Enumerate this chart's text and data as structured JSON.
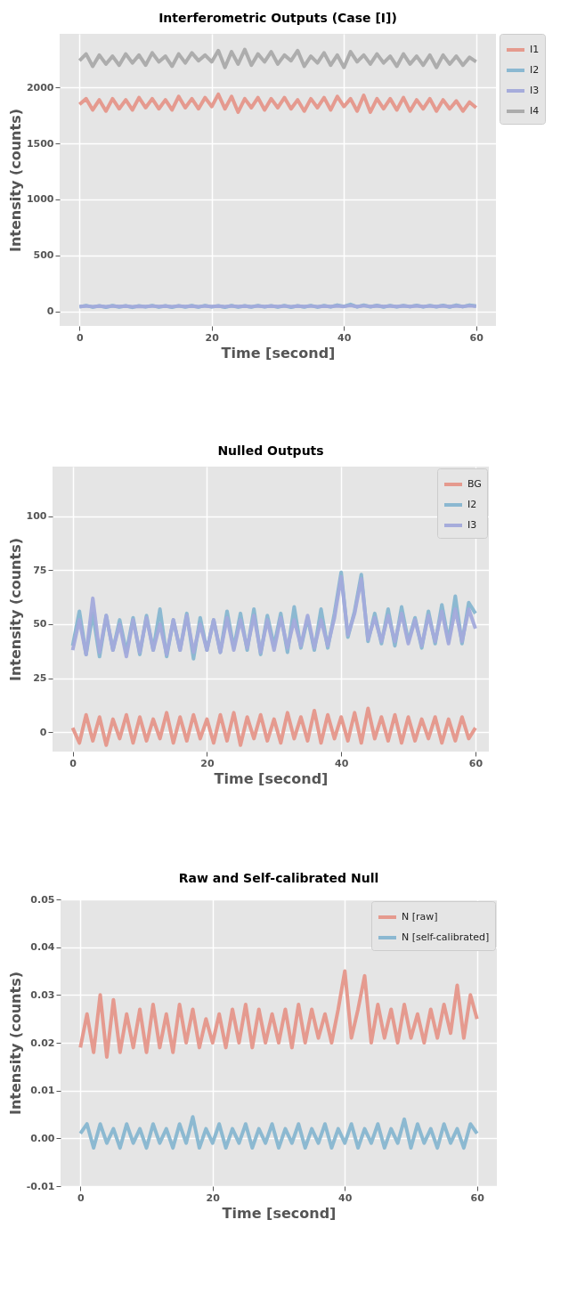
{
  "chart_data": [
    {
      "type": "line",
      "title": "Interferometric Outputs (Case [I])",
      "xlabel": "Time [second]",
      "ylabel": "Intensity (counts)",
      "xlim": [
        -3,
        63
      ],
      "ylim": [
        -130,
        2480
      ],
      "xticks": [
        0,
        20,
        40,
        60
      ],
      "yticks": [
        0,
        500,
        1000,
        1500,
        2000
      ],
      "grid": true,
      "legend": "top right",
      "line_style": "solid",
      "x": [
        0,
        1,
        2,
        3,
        4,
        5,
        6,
        7,
        8,
        9,
        10,
        11,
        12,
        13,
        14,
        15,
        16,
        17,
        18,
        19,
        20,
        21,
        22,
        23,
        24,
        25,
        26,
        27,
        28,
        29,
        30,
        31,
        32,
        33,
        34,
        35,
        36,
        37,
        38,
        39,
        40,
        41,
        42,
        43,
        44,
        45,
        46,
        47,
        48,
        49,
        50,
        51,
        52,
        53,
        54,
        55,
        56,
        57,
        58,
        59,
        60
      ],
      "series": [
        {
          "name": "I1",
          "color": "#e5968a",
          "values": [
            1850,
            1900,
            1800,
            1890,
            1790,
            1900,
            1810,
            1890,
            1800,
            1910,
            1820,
            1900,
            1810,
            1890,
            1800,
            1920,
            1820,
            1900,
            1810,
            1910,
            1830,
            1940,
            1810,
            1920,
            1780,
            1900,
            1820,
            1910,
            1800,
            1900,
            1820,
            1910,
            1810,
            1890,
            1790,
            1900,
            1820,
            1910,
            1800,
            1920,
            1830,
            1900,
            1790,
            1930,
            1780,
            1900,
            1810,
            1900,
            1800,
            1910,
            1790,
            1890,
            1810,
            1900,
            1790,
            1890,
            1810,
            1880,
            1790,
            1870,
            1820
          ]
        },
        {
          "name": "I2",
          "color": "#87b6d0",
          "values": [
            40,
            52,
            38,
            50,
            37,
            51,
            39,
            49,
            36,
            50,
            40,
            52,
            38,
            49,
            37,
            50,
            39,
            51,
            38,
            52,
            40,
            50,
            37,
            51,
            38,
            49,
            39,
            52,
            40,
            50,
            38,
            51,
            37,
            50,
            39,
            52,
            38,
            51,
            40,
            56,
            44,
            62,
            40,
            55,
            41,
            53,
            39,
            52,
            40,
            51,
            42,
            54,
            40,
            52,
            41,
            53,
            39,
            55,
            42,
            56,
            48
          ]
        },
        {
          "name": "I3",
          "color": "#a3aadb",
          "values": [
            44,
            48,
            42,
            47,
            41,
            48,
            43,
            47,
            42,
            46,
            44,
            48,
            43,
            47,
            42,
            48,
            43,
            47,
            42,
            48,
            44,
            47,
            42,
            48,
            43,
            47,
            42,
            48,
            44,
            47,
            43,
            48,
            42,
            47,
            43,
            48,
            42,
            47,
            43,
            49,
            44,
            52,
            43,
            50,
            44,
            49,
            43,
            48,
            44,
            49,
            44,
            49,
            43,
            48,
            44,
            49,
            43,
            49,
            44,
            50,
            46
          ]
        },
        {
          "name": "I4",
          "color": "#aaaaaa",
          "values": [
            2240,
            2300,
            2190,
            2290,
            2210,
            2280,
            2200,
            2300,
            2220,
            2290,
            2200,
            2310,
            2230,
            2280,
            2190,
            2300,
            2220,
            2310,
            2240,
            2290,
            2230,
            2330,
            2180,
            2320,
            2210,
            2340,
            2200,
            2300,
            2230,
            2320,
            2210,
            2290,
            2240,
            2330,
            2190,
            2280,
            2220,
            2310,
            2200,
            2290,
            2180,
            2320,
            2230,
            2290,
            2210,
            2300,
            2220,
            2280,
            2190,
            2300,
            2210,
            2280,
            2200,
            2290,
            2180,
            2290,
            2210,
            2280,
            2200,
            2270,
            2230
          ]
        }
      ]
    },
    {
      "type": "line",
      "title": "Nulled Outputs",
      "xlabel": "Time [second]",
      "ylabel": "Intensity (counts)",
      "xlim": [
        -3,
        62
      ],
      "ylim": [
        -9,
        123
      ],
      "xticks": [
        0,
        20,
        40,
        60
      ],
      "yticks": [
        0,
        25,
        50,
        75,
        100
      ],
      "grid": true,
      "legend": "top right",
      "line_style": "solid",
      "x": [
        0,
        1,
        2,
        3,
        4,
        5,
        6,
        7,
        8,
        9,
        10,
        11,
        12,
        13,
        14,
        15,
        16,
        17,
        18,
        19,
        20,
        21,
        22,
        23,
        24,
        25,
        26,
        27,
        28,
        29,
        30,
        31,
        32,
        33,
        34,
        35,
        36,
        37,
        38,
        39,
        40,
        41,
        42,
        43,
        44,
        45,
        46,
        47,
        48,
        49,
        50,
        51,
        52,
        53,
        54,
        55,
        56,
        57,
        58,
        59,
        60
      ],
      "series": [
        {
          "name": "BG",
          "color": "#e5968a",
          "values": [
            2,
            -5,
            8,
            -4,
            7,
            -6,
            6,
            -3,
            8,
            -5,
            7,
            -4,
            6,
            -3,
            9,
            -5,
            7,
            -4,
            8,
            -3,
            6,
            -5,
            8,
            -4,
            9,
            -6,
            7,
            -3,
            8,
            -4,
            6,
            -5,
            9,
            -3,
            7,
            -4,
            10,
            -5,
            8,
            -3,
            7,
            -4,
            9,
            -5,
            11,
            -3,
            7,
            -4,
            8,
            -5,
            7,
            -4,
            6,
            -3,
            7,
            -5,
            6,
            -4,
            7,
            -3,
            2
          ]
        },
        {
          "name": "I2",
          "color": "#87b6d0",
          "values": [
            40,
            56,
            36,
            55,
            35,
            54,
            38,
            52,
            37,
            53,
            36,
            54,
            38,
            57,
            35,
            52,
            38,
            55,
            34,
            53,
            38,
            52,
            37,
            56,
            39,
            55,
            38,
            57,
            36,
            54,
            40,
            55,
            37,
            58,
            39,
            53,
            38,
            57,
            39,
            55,
            74,
            44,
            56,
            73,
            42,
            55,
            41,
            57,
            40,
            58,
            42,
            53,
            39,
            56,
            41,
            59,
            42,
            63,
            41,
            60,
            55
          ]
        },
        {
          "name": "I3",
          "color": "#a3aadb",
          "values": [
            38,
            52,
            36,
            62,
            37,
            54,
            38,
            50,
            35,
            52,
            37,
            53,
            38,
            50,
            36,
            52,
            38,
            54,
            37,
            50,
            38,
            52,
            37,
            53,
            38,
            52,
            39,
            54,
            37,
            52,
            38,
            53,
            39,
            52,
            40,
            54,
            39,
            52,
            40,
            53,
            72,
            45,
            55,
            71,
            43,
            53,
            42,
            54,
            42,
            55,
            41,
            52,
            40,
            54,
            42,
            56,
            41,
            57,
            42,
            57,
            48
          ]
        }
      ]
    },
    {
      "type": "line",
      "title": "Raw and Self-calibrated Null",
      "xlabel": "Time [second]",
      "ylabel": "Intensity (counts)",
      "xlim": [
        -3,
        63
      ],
      "ylim": [
        -0.01,
        0.05
      ],
      "xticks": [
        0,
        20,
        40,
        60
      ],
      "yticks": [
        -0.01,
        {
          "value": 0,
          "label": "0.00"
        },
        0.01,
        0.02,
        0.03,
        0.04,
        0.05
      ],
      "grid": true,
      "legend": "top right",
      "line_style": "solid",
      "x": [
        0,
        1,
        2,
        3,
        4,
        5,
        6,
        7,
        8,
        9,
        10,
        11,
        12,
        13,
        14,
        15,
        16,
        17,
        18,
        19,
        20,
        21,
        22,
        23,
        24,
        25,
        26,
        27,
        28,
        29,
        30,
        31,
        32,
        33,
        34,
        35,
        36,
        37,
        38,
        39,
        40,
        41,
        42,
        43,
        44,
        45,
        46,
        47,
        48,
        49,
        50,
        51,
        52,
        53,
        54,
        55,
        56,
        57,
        58,
        59,
        60
      ],
      "series": [
        {
          "name": "N [raw]",
          "color": "#e5968a",
          "values": [
            0.019,
            0.026,
            0.018,
            0.03,
            0.017,
            0.029,
            0.018,
            0.026,
            0.019,
            0.027,
            0.018,
            0.028,
            0.019,
            0.026,
            0.018,
            0.028,
            0.02,
            0.027,
            0.019,
            0.025,
            0.02,
            0.026,
            0.019,
            0.027,
            0.02,
            0.028,
            0.019,
            0.027,
            0.02,
            0.026,
            0.02,
            0.027,
            0.019,
            0.028,
            0.02,
            0.027,
            0.021,
            0.026,
            0.02,
            0.027,
            0.035,
            0.021,
            0.027,
            0.034,
            0.02,
            0.028,
            0.021,
            0.027,
            0.02,
            0.028,
            0.021,
            0.026,
            0.02,
            0.027,
            0.021,
            0.028,
            0.022,
            0.032,
            0.021,
            0.03,
            0.025
          ]
        },
        {
          "name": "N [self-calibrated]",
          "color": "#87b6d0",
          "values": [
            0.001,
            0.003,
            -0.002,
            0.003,
            -0.001,
            0.002,
            -0.002,
            0.003,
            -0.001,
            0.002,
            -0.002,
            0.003,
            -0.001,
            0.002,
            -0.002,
            0.003,
            -0.001,
            0.0045,
            -0.002,
            0.002,
            -0.001,
            0.003,
            -0.002,
            0.002,
            -0.001,
            0.003,
            -0.002,
            0.002,
            -0.001,
            0.003,
            -0.002,
            0.002,
            -0.001,
            0.003,
            -0.002,
            0.002,
            -0.001,
            0.003,
            -0.002,
            0.002,
            -0.001,
            0.003,
            -0.002,
            0.002,
            -0.001,
            0.003,
            -0.002,
            0.002,
            -0.001,
            0.004,
            -0.002,
            0.003,
            -0.001,
            0.002,
            -0.002,
            0.003,
            -0.001,
            0.002,
            -0.002,
            0.003,
            0.001
          ]
        }
      ]
    }
  ]
}
